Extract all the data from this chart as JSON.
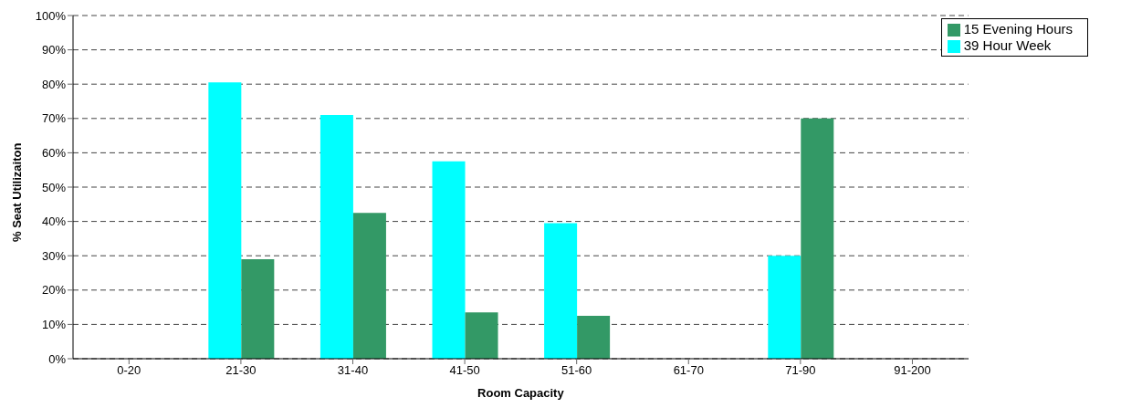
{
  "chart_data": {
    "type": "bar",
    "xlabel": "Room Capacity",
    "ylabel": "% Seat Utilizaiton",
    "categories": [
      "0-20",
      "21-30",
      "31-40",
      "41-50",
      "51-60",
      "61-70",
      "71-90",
      "91-200"
    ],
    "series": [
      {
        "name": "39 Hour Week",
        "color": "#00ffff",
        "values": [
          0,
          80.5,
          71,
          57.5,
          39.5,
          0,
          30,
          0
        ]
      },
      {
        "name": "15 Evening Hours",
        "color": "#339966",
        "values": [
          0,
          29,
          42.5,
          13.5,
          12.5,
          0,
          70,
          0
        ]
      }
    ],
    "ylim": [
      0,
      100
    ],
    "yticks": [
      {
        "value": 0,
        "label": "0%"
      },
      {
        "value": 10,
        "label": "10%"
      },
      {
        "value": 20,
        "label": "20%"
      },
      {
        "value": 30,
        "label": "30%"
      },
      {
        "value": 40,
        "label": "40%"
      },
      {
        "value": 50,
        "label": "50%"
      },
      {
        "value": 60,
        "label": "60%"
      },
      {
        "value": 70,
        "label": "70%"
      },
      {
        "value": 80,
        "label": "80%"
      },
      {
        "value": 90,
        "label": "90%"
      },
      {
        "value": 100,
        "label": "100%"
      }
    ],
    "grid": "y",
    "legend": "top right"
  }
}
